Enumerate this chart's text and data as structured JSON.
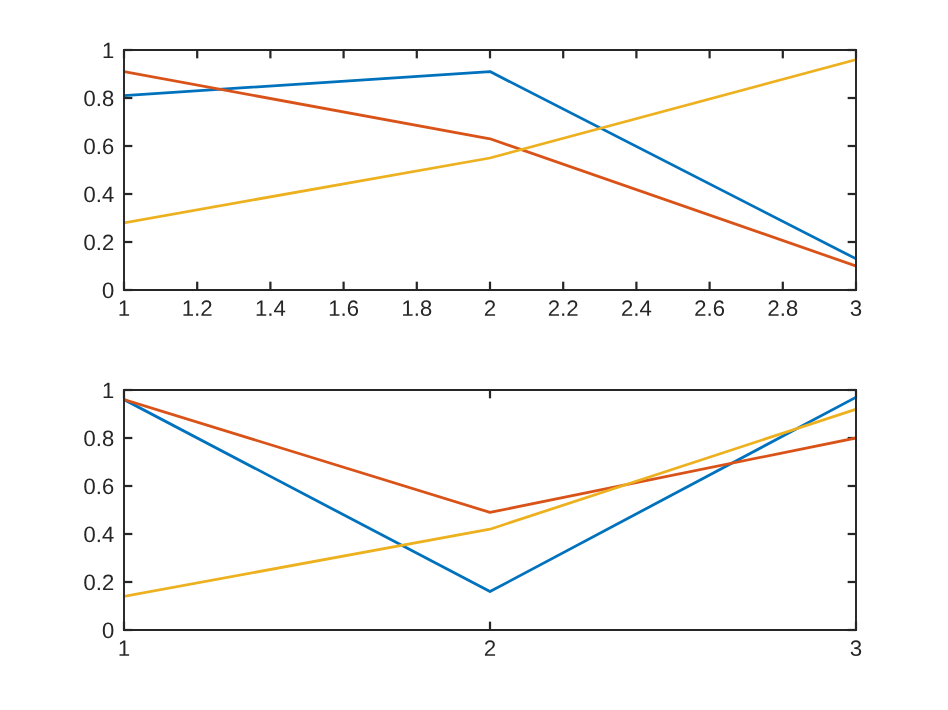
{
  "chart_data": [
    {
      "type": "line",
      "x": [
        1,
        2,
        3
      ],
      "xlim": [
        1,
        3
      ],
      "ylim": [
        0,
        1
      ],
      "xticks": [
        1,
        1.2,
        1.4,
        1.6,
        1.8,
        2,
        2.2,
        2.4,
        2.6,
        2.8,
        3
      ],
      "yticks": [
        0,
        0.2,
        0.4,
        0.6,
        0.8,
        1
      ],
      "grid": false,
      "series": [
        {
          "color": "#0072bd",
          "values": [
            0.81,
            0.91,
            0.13
          ]
        },
        {
          "color": "#d95319",
          "values": [
            0.91,
            0.63,
            0.1
          ]
        },
        {
          "color": "#edb120",
          "values": [
            0.28,
            0.55,
            0.96
          ]
        }
      ]
    },
    {
      "type": "line",
      "x": [
        1,
        2,
        3
      ],
      "xlim": [
        1,
        3
      ],
      "ylim": [
        0,
        1
      ],
      "xticks": [
        1,
        2,
        3
      ],
      "yticks": [
        0,
        0.2,
        0.4,
        0.6,
        0.8,
        1
      ],
      "grid": false,
      "series": [
        {
          "color": "#0072bd",
          "values": [
            0.96,
            0.16,
            0.97
          ]
        },
        {
          "color": "#d95319",
          "values": [
            0.96,
            0.49,
            0.8
          ]
        },
        {
          "color": "#edb120",
          "values": [
            0.14,
            0.42,
            0.92
          ]
        }
      ]
    }
  ]
}
